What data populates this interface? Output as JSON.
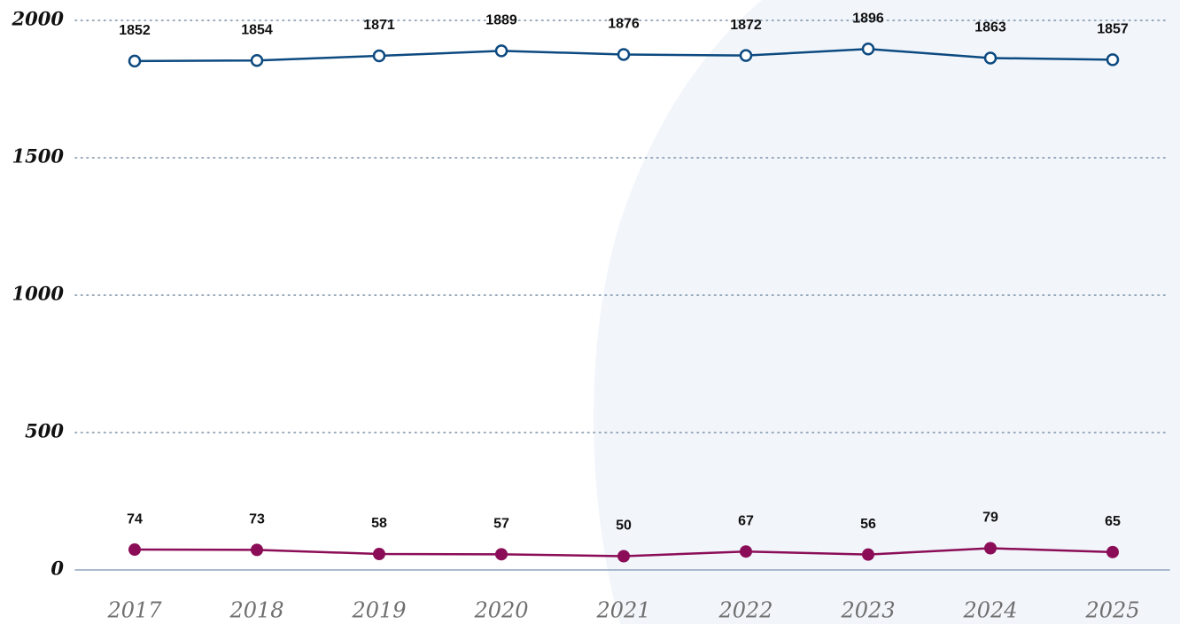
{
  "chart_data": {
    "type": "line",
    "categories": [
      "2017",
      "2018",
      "2019",
      "2020",
      "2021",
      "2022",
      "2023",
      "2024",
      "2025"
    ],
    "series": [
      {
        "color": "#0d4a80",
        "values": [
          1852,
          1854,
          1871,
          1889,
          1876,
          1872,
          1896,
          1863,
          1857
        ]
      },
      {
        "color": "#8b0d57",
        "values": [
          74,
          73,
          58,
          57,
          50,
          67,
          56,
          79,
          65
        ]
      }
    ],
    "ylim": [
      0,
      2000
    ],
    "yticks": [
      0,
      500,
      1000,
      1500,
      2000
    ],
    "grid": true
  }
}
